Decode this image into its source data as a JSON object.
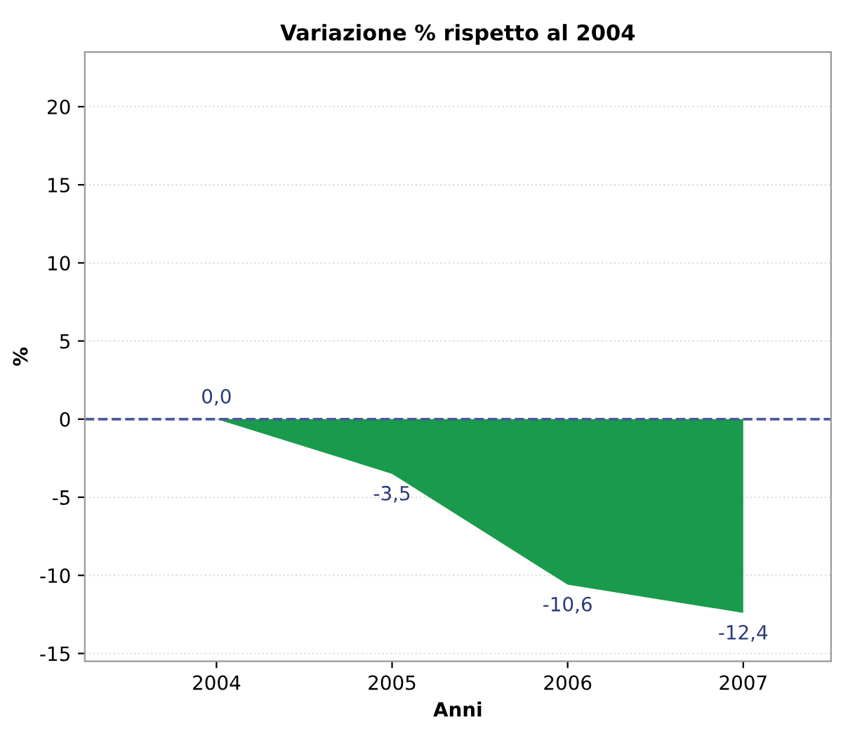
{
  "chart_data": {
    "type": "area",
    "title": "Variazione % rispetto al 2004",
    "xlabel": "Anni",
    "ylabel": "%",
    "categories": [
      "2004",
      "2005",
      "2006",
      "2007"
    ],
    "series": [
      {
        "color": "#1a9a4c",
        "values": [
          0.0,
          -3.5,
          -10.6,
          -12.4
        ],
        "value_labels": [
          "0,0",
          "-3,5",
          "-10,6",
          "-12,4"
        ]
      }
    ],
    "ylim": [
      -15.5,
      23.5
    ],
    "yticks": [
      -15,
      -10,
      -5,
      0,
      5,
      10,
      15,
      20
    ],
    "grid": "y",
    "ref_lines": [
      {
        "axis": "y",
        "value": 0,
        "color": "#4a5a9a",
        "line_style": "dashed"
      }
    ]
  }
}
